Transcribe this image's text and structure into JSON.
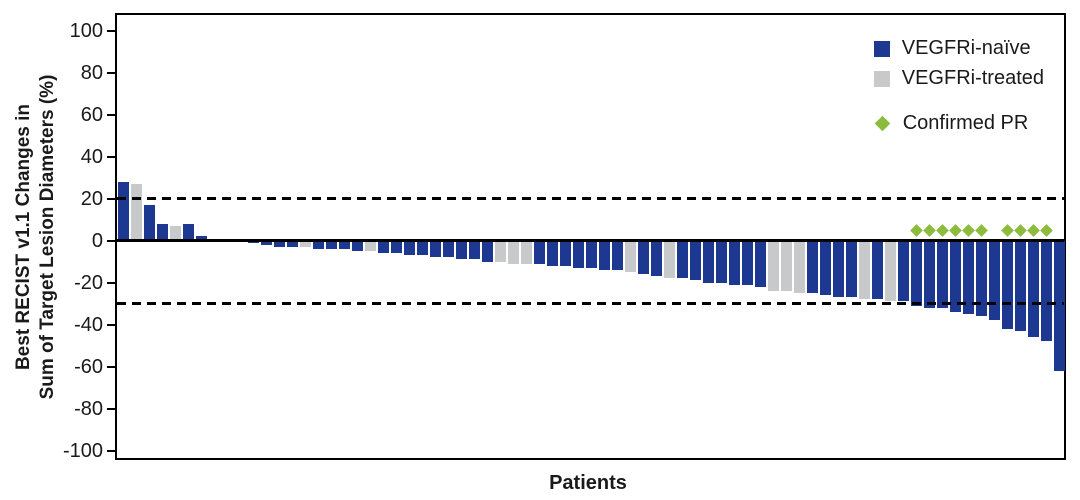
{
  "figure": {
    "y_axis_label_line1": "Best RECIST v1.1 Changes in",
    "y_axis_label_line2": "Sum of Target Lesion Diameters (%)",
    "x_axis_label": "Patients",
    "legend": [
      {
        "label": "VEGFRi-naïve",
        "swatch": "square",
        "color": "#1d3891"
      },
      {
        "label": "VEGFRi-treated",
        "swatch": "square",
        "color": "#c8c9cb"
      },
      {
        "label": "Confirmed PR",
        "swatch": "diamond",
        "color": "#8cbb3e"
      }
    ]
  },
  "chart_data": {
    "type": "bar",
    "subtype": "waterfall",
    "title": "",
    "xlabel": "Patients",
    "ylabel": "Best RECIST v1.1 Changes in Sum of Target Lesion Diameters (%)",
    "ylim": [
      -100,
      100
    ],
    "yticks": [
      100,
      80,
      60,
      40,
      20,
      0,
      -20,
      -40,
      -60,
      -80,
      -100
    ],
    "reference_lines": [
      20,
      -30
    ],
    "grid": false,
    "legend_position": "top-right-inside",
    "colors": {
      "naive": "#1d3891",
      "treated": "#c8c9cb",
      "pr_marker": "#8cbb3e"
    },
    "pr_marker_value": 5,
    "gap_after_index": 6,
    "gap_slots": 3,
    "bars": [
      {
        "value": 28,
        "group": "naive",
        "pr": false
      },
      {
        "value": 27,
        "group": "treated",
        "pr": false
      },
      {
        "value": 17,
        "group": "naive",
        "pr": false
      },
      {
        "value": 8,
        "group": "naive",
        "pr": false
      },
      {
        "value": 7,
        "group": "treated",
        "pr": false
      },
      {
        "value": 8,
        "group": "naive",
        "pr": false
      },
      {
        "value": 2,
        "group": "naive",
        "pr": false
      },
      {
        "value": -1,
        "group": "naive",
        "pr": false
      },
      {
        "value": -2,
        "group": "naive",
        "pr": false
      },
      {
        "value": -3,
        "group": "naive",
        "pr": false
      },
      {
        "value": -3,
        "group": "naive",
        "pr": false
      },
      {
        "value": -3,
        "group": "treated",
        "pr": false
      },
      {
        "value": -4,
        "group": "naive",
        "pr": false
      },
      {
        "value": -4,
        "group": "naive",
        "pr": false
      },
      {
        "value": -4,
        "group": "naive",
        "pr": false
      },
      {
        "value": -5,
        "group": "naive",
        "pr": false
      },
      {
        "value": -5,
        "group": "treated",
        "pr": false
      },
      {
        "value": -6,
        "group": "naive",
        "pr": false
      },
      {
        "value": -6,
        "group": "naive",
        "pr": false
      },
      {
        "value": -7,
        "group": "naive",
        "pr": false
      },
      {
        "value": -7,
        "group": "naive",
        "pr": false
      },
      {
        "value": -8,
        "group": "naive",
        "pr": false
      },
      {
        "value": -8,
        "group": "naive",
        "pr": false
      },
      {
        "value": -9,
        "group": "naive",
        "pr": false
      },
      {
        "value": -9,
        "group": "naive",
        "pr": false
      },
      {
        "value": -10,
        "group": "naive",
        "pr": false
      },
      {
        "value": -10,
        "group": "treated",
        "pr": false
      },
      {
        "value": -11,
        "group": "treated",
        "pr": false
      },
      {
        "value": -11,
        "group": "treated",
        "pr": false
      },
      {
        "value": -11,
        "group": "naive",
        "pr": false
      },
      {
        "value": -12,
        "group": "naive",
        "pr": false
      },
      {
        "value": -12,
        "group": "naive",
        "pr": false
      },
      {
        "value": -13,
        "group": "naive",
        "pr": false
      },
      {
        "value": -13,
        "group": "naive",
        "pr": false
      },
      {
        "value": -14,
        "group": "naive",
        "pr": false
      },
      {
        "value": -14,
        "group": "naive",
        "pr": false
      },
      {
        "value": -15,
        "group": "treated",
        "pr": false
      },
      {
        "value": -16,
        "group": "naive",
        "pr": false
      },
      {
        "value": -17,
        "group": "naive",
        "pr": false
      },
      {
        "value": -18,
        "group": "treated",
        "pr": false
      },
      {
        "value": -18,
        "group": "naive",
        "pr": false
      },
      {
        "value": -19,
        "group": "naive",
        "pr": false
      },
      {
        "value": -20,
        "group": "naive",
        "pr": false
      },
      {
        "value": -20,
        "group": "naive",
        "pr": false
      },
      {
        "value": -21,
        "group": "naive",
        "pr": false
      },
      {
        "value": -21,
        "group": "naive",
        "pr": false
      },
      {
        "value": -22,
        "group": "naive",
        "pr": false
      },
      {
        "value": -24,
        "group": "treated",
        "pr": false
      },
      {
        "value": -24,
        "group": "treated",
        "pr": false
      },
      {
        "value": -25,
        "group": "treated",
        "pr": false
      },
      {
        "value": -25,
        "group": "naive",
        "pr": false
      },
      {
        "value": -26,
        "group": "naive",
        "pr": false
      },
      {
        "value": -27,
        "group": "naive",
        "pr": false
      },
      {
        "value": -27,
        "group": "naive",
        "pr": false
      },
      {
        "value": -28,
        "group": "treated",
        "pr": false
      },
      {
        "value": -28,
        "group": "naive",
        "pr": false
      },
      {
        "value": -29,
        "group": "treated",
        "pr": false
      },
      {
        "value": -29,
        "group": "naive",
        "pr": false
      },
      {
        "value": -31,
        "group": "naive",
        "pr": true
      },
      {
        "value": -32,
        "group": "naive",
        "pr": true
      },
      {
        "value": -32,
        "group": "naive",
        "pr": true
      },
      {
        "value": -34,
        "group": "naive",
        "pr": true
      },
      {
        "value": -35,
        "group": "naive",
        "pr": true
      },
      {
        "value": -36,
        "group": "naive",
        "pr": true
      },
      {
        "value": -38,
        "group": "naive",
        "pr": false
      },
      {
        "value": -42,
        "group": "naive",
        "pr": true
      },
      {
        "value": -43,
        "group": "naive",
        "pr": true
      },
      {
        "value": -46,
        "group": "naive",
        "pr": true
      },
      {
        "value": -48,
        "group": "naive",
        "pr": true
      },
      {
        "value": -62,
        "group": "naive",
        "pr": false
      }
    ]
  }
}
